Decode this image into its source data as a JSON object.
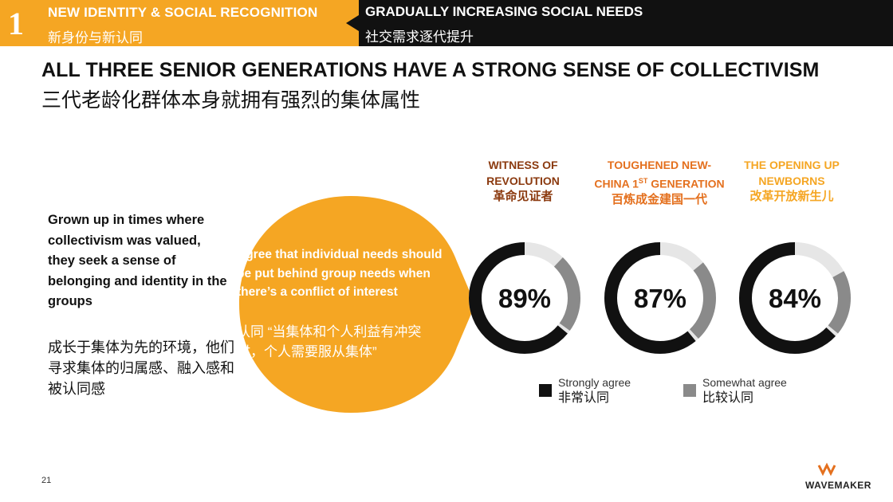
{
  "header": {
    "section_number": "1",
    "left_title_en": "NEW IDENTITY & SOCIAL RECOGNITION",
    "left_title_zh": "新身份与新认同",
    "right_title_en": "GRADUALLY INCREASING SOCIAL NEEDS",
    "right_title_zh": "社交需求逐代提升"
  },
  "main": {
    "title_en": "ALL THREE SENIOR GENERATIONS HAVE A STRONG SENSE OF COLLECTIVISM",
    "title_zh": "三代老龄化群体本身就拥有强烈的集体属性",
    "intro_en": "Grown up in times where collectivism was valued, they seek a sense of belonging and identity in the groups",
    "intro_zh": "成长于集体为先的环境，他们寻求集体的归属感、融入感和被认同感",
    "statement_en": "Agree that individual needs should be put behind group needs when there’s a conflict of interest",
    "statement_zh": "认同 “当集体和个人利益有冲突时，个人需要服从集体”"
  },
  "chart_data": {
    "type": "pie",
    "subtype": "donut",
    "categories": [
      {
        "name_en_line1": "WITNESS OF",
        "name_en_line2": "REVOLUTION",
        "name_zh": "革命见证者",
        "color": "#8b3a0f"
      },
      {
        "name_en_line1": "TOUGHENED NEW-",
        "name_en_line2_pre": "CHINA 1",
        "name_en_sup": "ST",
        "name_en_line2_post": " GENERATION",
        "name_zh": "百炼成金建国一代",
        "color": "#e4701e"
      },
      {
        "name_en_line1": "THE OPENING UP",
        "name_en_line2": "NEWBORNS",
        "name_zh": "改革开放新生儿",
        "color": "#f5a623"
      }
    ],
    "series": [
      {
        "name": "Strongly agree",
        "name_zh": "非常认同",
        "color": "#111111",
        "values": [
          65,
          62,
          64
        ]
      },
      {
        "name": "Somewhat agree",
        "name_zh": "比较认同",
        "color": "#8a8a8a",
        "values": [
          24,
          25,
          20
        ]
      }
    ],
    "totals": [
      "89%",
      "87%",
      "84%"
    ],
    "remainder_color": "#e6e6e6",
    "legend_position": "bottom"
  },
  "footer": {
    "page_number": "21",
    "logo_text": "WAVEMAKER"
  }
}
